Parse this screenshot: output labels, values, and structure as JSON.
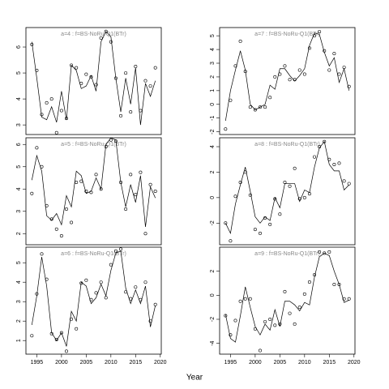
{
  "xlabel": "Year",
  "chart_data": [
    {
      "type": "line",
      "title": "a=4 : f=BS-NoRu-Q1(BTr)",
      "x": [
        1994,
        1995,
        1996,
        1997,
        1998,
        1999,
        2000,
        2001,
        2002,
        2003,
        2004,
        2005,
        2006,
        2007,
        2008,
        2009,
        2010,
        2011,
        2012,
        2013,
        2014,
        2015,
        2016,
        2017,
        2018,
        2019
      ],
      "xlim": [
        1992.8,
        2020.2
      ],
      "ylim": [
        2.63,
        6.75
      ],
      "yticks": [
        3,
        4,
        5,
        6
      ],
      "series": [
        {
          "marker": "circle",
          "color": "#000000",
          "values": [
            6.1,
            5.1,
            3.4,
            3.85,
            4.0,
            2.7,
            3.55,
            3.25,
            5.3,
            5.2,
            4.6,
            4.95,
            4.85,
            4.55,
            6.35,
            6.6,
            6.2,
            4.8,
            3.35,
            5.0,
            3.5,
            5.25,
            3.55,
            4.7,
            4.5,
            5.2
          ]
        },
        {
          "marker": "none",
          "color": "#000000",
          "values": [
            6.2,
            4.8,
            3.3,
            3.2,
            3.7,
            3.1,
            4.3,
            3.2,
            5.3,
            5.1,
            4.4,
            4.5,
            4.9,
            4.3,
            6.2,
            6.6,
            6.4,
            4.8,
            3.5,
            4.8,
            3.8,
            5.2,
            3.0,
            4.6,
            4.1,
            4.7
          ]
        }
      ]
    },
    {
      "type": "line",
      "title": "a=7 : f=BS-NoRu-Q1(BTr)",
      "x": [
        1994,
        1995,
        1996,
        1997,
        1998,
        1999,
        2000,
        2001,
        2002,
        2003,
        2004,
        2005,
        2006,
        2007,
        2008,
        2009,
        2010,
        2011,
        2012,
        2013,
        2014,
        2015,
        2016,
        2017,
        2018,
        2019
      ],
      "xlim": [
        1992.8,
        2020.2
      ],
      "ylim": [
        -2.2,
        5.6
      ],
      "yticks": [
        -2,
        -1,
        0,
        1,
        2,
        3,
        4,
        5
      ],
      "series": [
        {
          "marker": "circle",
          "color": "#000000",
          "values": [
            -1.8,
            0.3,
            2.8,
            4.6,
            2.4,
            -0.2,
            -0.4,
            -0.2,
            -0.2,
            0.5,
            2.0,
            2.2,
            2.8,
            1.8,
            1.8,
            2.5,
            2.2,
            4.1,
            5.0,
            5.3,
            3.9,
            2.5,
            3.7,
            2.2,
            2.7,
            1.3
          ]
        },
        {
          "marker": "none",
          "color": "#000000",
          "values": [
            -1.2,
            1.0,
            2.5,
            3.9,
            2.5,
            0.0,
            -0.4,
            -0.2,
            0.0,
            1.4,
            1.1,
            2.6,
            2.6,
            2.1,
            1.7,
            2.1,
            2.6,
            4.3,
            5.2,
            5.1,
            3.8,
            2.8,
            3.4,
            1.6,
            2.6,
            1.0
          ]
        }
      ]
    },
    {
      "type": "line",
      "title": "a=5 : f=BS-NoRu-Q1(BTr)",
      "x": [
        1994,
        1995,
        1996,
        1997,
        1998,
        1999,
        2000,
        2001,
        2002,
        2003,
        2004,
        2005,
        2006,
        2007,
        2008,
        2009,
        2010,
        2011,
        2012,
        2013,
        2014,
        2015,
        2016,
        2017,
        2018,
        2019
      ],
      "xlim": [
        1992.8,
        2020.2
      ],
      "ylim": [
        1.5,
        6.3
      ],
      "yticks": [
        2,
        3,
        4,
        5,
        6
      ],
      "series": [
        {
          "marker": "circle",
          "color": "#000000",
          "values": [
            3.8,
            5.85,
            5.0,
            3.25,
            2.65,
            2.2,
            1.9,
            3.1,
            2.5,
            4.3,
            4.35,
            3.9,
            3.85,
            4.65,
            4.0,
            5.9,
            6.2,
            6.15,
            4.3,
            3.1,
            4.65,
            3.75,
            4.75,
            2.0,
            4.2,
            3.9
          ]
        },
        {
          "marker": "none",
          "color": "#000000",
          "values": [
            4.4,
            5.5,
            4.8,
            2.8,
            2.6,
            2.9,
            2.4,
            3.7,
            3.2,
            4.8,
            4.6,
            3.8,
            3.9,
            4.5,
            4.0,
            6.0,
            6.3,
            6.2,
            4.3,
            3.2,
            4.2,
            3.4,
            4.6,
            2.3,
            4.1,
            3.6
          ]
        }
      ]
    },
    {
      "type": "line",
      "title": "a=8 : f=BS-NoRu-Q1(BTr)",
      "x": [
        1994,
        1995,
        1996,
        1997,
        1998,
        1999,
        2000,
        2001,
        2002,
        2003,
        2004,
        2005,
        2006,
        2007,
        2008,
        2009,
        2010,
        2011,
        2012,
        2013,
        2014,
        2015,
        2016,
        2017,
        2018,
        2019
      ],
      "xlim": [
        1992.8,
        2020.2
      ],
      "ylim": [
        -3.7,
        4.7
      ],
      "yticks": [
        -2,
        0,
        2,
        4
      ],
      "series": [
        {
          "marker": "circle",
          "color": "#000000",
          "values": [
            -2.0,
            -3.4,
            0.1,
            1.2,
            2.0,
            0.2,
            -2.5,
            -2.8,
            -1.6,
            -2.1,
            -0.1,
            -1.3,
            1.2,
            0.9,
            2.3,
            -0.1,
            0.0,
            0.3,
            3.2,
            4.0,
            4.4,
            3.0,
            2.6,
            2.7,
            1.3,
            1.1
          ]
        },
        {
          "marker": "none",
          "color": "#000000",
          "values": [
            -2.0,
            -2.8,
            -0.5,
            1.0,
            2.4,
            0.5,
            -1.5,
            -2.0,
            -1.5,
            -1.8,
            0.0,
            -0.8,
            1.1,
            1.1,
            1.1,
            -0.3,
            0.6,
            0.4,
            2.4,
            3.9,
            4.4,
            2.6,
            2.1,
            2.1,
            0.6,
            1.0
          ]
        }
      ]
    },
    {
      "type": "line",
      "title": "a=6 : f=BS-NoRu-Q1(BTr)",
      "x": [
        1994,
        1995,
        1996,
        1997,
        1998,
        1999,
        2000,
        2001,
        2002,
        2003,
        2004,
        2005,
        2006,
        2007,
        2008,
        2009,
        2010,
        2011,
        2012,
        2013,
        2014,
        2015,
        2016,
        2017,
        2018,
        2019
      ],
      "xlim": [
        1992.8,
        2020.2
      ],
      "ylim": [
        0.3,
        5.8
      ],
      "yticks": [
        1,
        2,
        3,
        4,
        5
      ],
      "xticks": [
        1995,
        2000,
        2005,
        2010,
        2015,
        2020
      ],
      "series": [
        {
          "marker": "circle",
          "color": "#000000",
          "values": [
            1.25,
            3.4,
            5.45,
            4.15,
            1.35,
            1.05,
            1.4,
            0.45,
            2.1,
            1.6,
            3.95,
            4.1,
            3.1,
            3.45,
            4.0,
            3.2,
            4.9,
            5.6,
            5.7,
            3.5,
            3.15,
            3.75,
            3.1,
            4.0,
            2.0,
            2.85
          ]
        },
        {
          "marker": "none",
          "color": "#000000",
          "values": [
            1.8,
            3.3,
            5.3,
            3.8,
            1.4,
            1.0,
            1.4,
            0.7,
            2.5,
            2.0,
            4.0,
            3.8,
            2.9,
            3.2,
            3.9,
            3.3,
            4.6,
            5.5,
            5.6,
            3.7,
            2.9,
            3.6,
            2.9,
            3.8,
            1.7,
            2.8
          ]
        }
      ]
    },
    {
      "type": "line",
      "title": "a=9 : f=BS-NoRu-Q1(BTr)",
      "x": [
        1994,
        1995,
        1996,
        1997,
        1998,
        1999,
        2000,
        2001,
        2002,
        2003,
        2004,
        2005,
        2006,
        2007,
        2008,
        2009,
        2010,
        2011,
        2012,
        2013,
        2014,
        2015,
        2016,
        2017,
        2018,
        2019
      ],
      "xlim": [
        1992.8,
        2020.2
      ],
      "ylim": [
        -4.9,
        4.0
      ],
      "yticks": [
        -4,
        -2,
        0,
        2
      ],
      "xticks": [
        1995,
        2000,
        2005,
        2010,
        2015,
        2020
      ],
      "series": [
        {
          "marker": "circle",
          "color": "#000000",
          "values": [
            -1.7,
            -3.3,
            -2.1,
            -0.5,
            -0.3,
            -0.3,
            -2.8,
            -4.6,
            -2.2,
            -2.0,
            -2.5,
            -2.4,
            0.3,
            -1.5,
            -2.4,
            -1.0,
            0.1,
            1.1,
            1.7,
            3.6,
            3.5,
            3.6,
            0.9,
            0.9,
            -0.3,
            -0.3
          ]
        },
        {
          "marker": "none",
          "color": "#000000",
          "values": [
            -1.6,
            -3.6,
            -3.9,
            -1.7,
            0.7,
            -1.0,
            -2.6,
            -3.3,
            -2.4,
            -2.9,
            -1.2,
            -2.6,
            -0.5,
            -0.5,
            -0.8,
            -1.3,
            -0.6,
            -0.8,
            1.5,
            3.2,
            3.5,
            3.3,
            2.0,
            0.9,
            -0.6,
            -0.4
          ]
        }
      ]
    }
  ]
}
